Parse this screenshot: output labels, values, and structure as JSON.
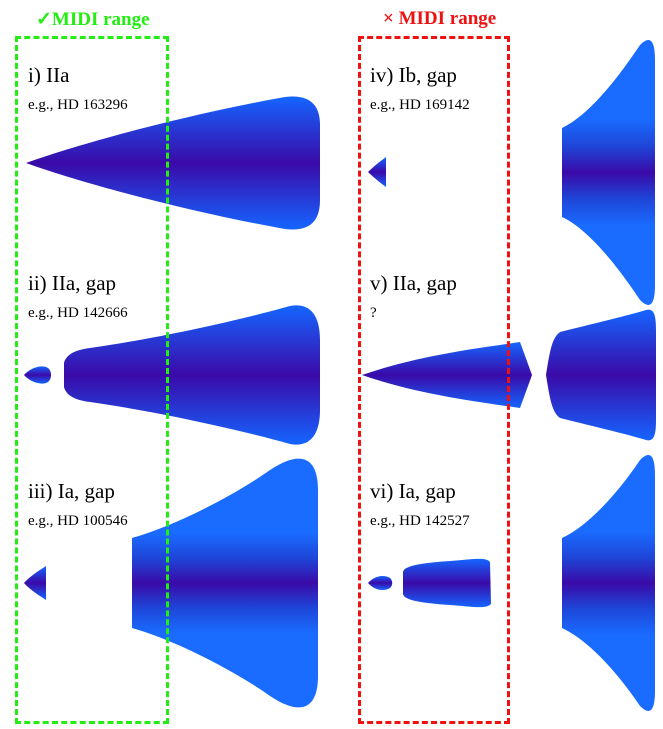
{
  "headers": {
    "in_range": {
      "symbol": "✓",
      "text": "MIDI range",
      "color": "#22ee11"
    },
    "out_range": {
      "symbol": "×",
      "text": "MIDI range",
      "color": "#ee1111"
    }
  },
  "panels": [
    {
      "label": "i) IIa",
      "example": "e.g., HD 163296"
    },
    {
      "label": "ii) IIa, gap",
      "example": "e.g., HD 142666"
    },
    {
      "label": "iii) Ia, gap",
      "example": "e.g., HD 100546"
    },
    {
      "label": "iv) Ib, gap",
      "example": "e.g., HD 169142"
    },
    {
      "label": "v) IIa, gap",
      "example": "?"
    },
    {
      "label": "vi) Ia, gap",
      "example": "e.g., HD 142527"
    }
  ],
  "colors": {
    "disk_edge": "#1565ff",
    "disk_mid": "#1e3fd0",
    "disk_core": "#3a0aa8",
    "flare_outer": "#1a6bff"
  }
}
